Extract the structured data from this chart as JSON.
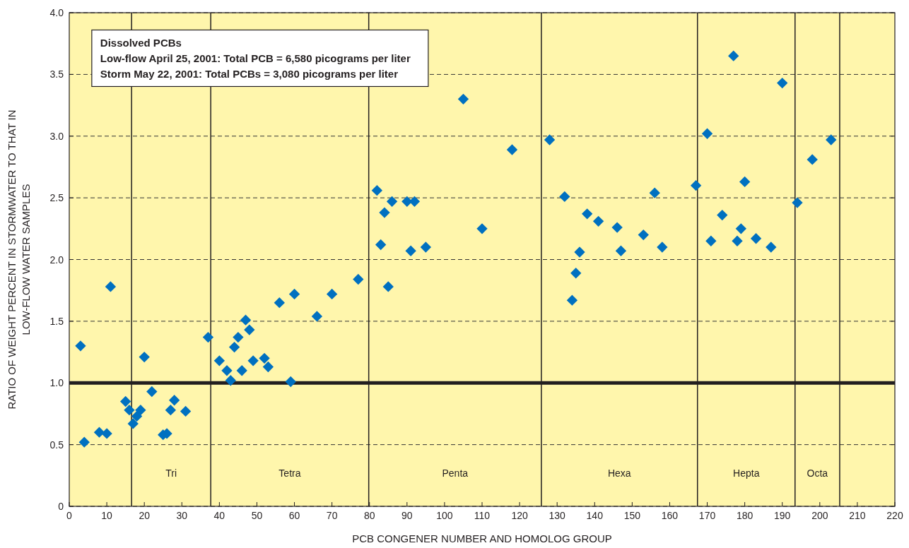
{
  "chart_data": {
    "type": "scatter",
    "xlabel": "PCB CONGENER NUMBER AND HOMOLOG GROUP",
    "ylabel": "RATIO OF WEIGHT PERCENT IN STORMWATER TO THAT IN LOW-FLOW WATER SAMPLES",
    "annotations": [
      "Dissolved PCBs",
      "Low-flow April 25, 2001: Total PCB = 6,580 picograms per liter",
      "Storm May 22, 2001: Total PCBs = 3,080 picograms per liter",
      "Tri",
      "Tetra",
      "Penta",
      "Hexa",
      "Hepta",
      "Octa"
    ],
    "x": [
      3,
      4,
      8,
      10,
      11,
      15,
      16,
      17,
      18,
      19,
      20,
      22,
      25,
      26,
      27,
      28,
      31,
      37,
      40,
      42,
      43,
      44,
      45,
      46,
      47,
      48,
      49,
      52,
      53,
      56,
      59,
      60,
      66,
      70,
      77,
      82,
      83,
      84,
      85,
      86,
      90,
      91,
      92,
      95,
      105,
      110,
      118,
      128,
      132,
      134,
      135,
      136,
      138,
      141,
      146,
      147,
      153,
      156,
      158,
      167,
      170,
      171,
      174,
      177,
      178,
      179,
      180,
      183,
      187,
      190,
      194,
      198,
      203
    ],
    "series": [
      {
        "color": "#0070c0",
        "values": [
          1.3,
          0.52,
          0.6,
          0.59,
          1.78,
          0.85,
          0.78,
          0.67,
          0.73,
          0.78,
          1.21,
          0.93,
          0.58,
          0.59,
          0.78,
          0.86,
          0.77,
          1.37,
          1.18,
          1.1,
          1.02,
          1.29,
          1.37,
          1.1,
          1.51,
          1.43,
          1.18,
          1.2,
          1.13,
          1.65,
          1.01,
          1.72,
          1.54,
          1.72,
          1.84,
          2.56,
          2.12,
          2.38,
          1.78,
          2.47,
          2.47,
          2.07,
          2.47,
          2.1,
          3.3,
          2.25,
          2.89,
          2.97,
          2.51,
          1.67,
          1.89,
          2.06,
          2.37,
          2.31,
          2.26,
          2.07,
          2.2,
          2.54,
          2.1,
          2.6,
          3.02,
          2.15,
          2.36,
          3.65,
          2.15,
          2.25,
          2.63,
          2.17,
          2.1,
          3.43,
          2.46,
          2.81,
          2.97
        ]
      }
    ],
    "marker": "diamond",
    "grid": "y",
    "xlim": [
      0,
      220
    ],
    "xticks": [
      0,
      10,
      20,
      30,
      40,
      50,
      60,
      70,
      80,
      90,
      100,
      110,
      120,
      130,
      140,
      150,
      160,
      170,
      180,
      190,
      200,
      210,
      220
    ],
    "ylim": [
      0,
      4
    ],
    "yticks": [
      0,
      0.5,
      {
        "value": 1,
        "label": "1.0"
      },
      1.5,
      {
        "value": 2,
        "label": "2.0"
      },
      2.5,
      {
        "value": 3,
        "label": "3.0"
      },
      3.5,
      {
        "value": 4,
        "label": "4.0"
      }
    ],
    "ref_lines": [
      {
        "axis": "y",
        "value": 1,
        "color": "#231f20"
      },
      {
        "axis": "x",
        "value": 16.6,
        "color": "#231f20"
      },
      {
        "axis": "x",
        "value": 37.7,
        "color": "#231f20"
      },
      {
        "axis": "x",
        "value": 79.8,
        "color": "#231f20"
      },
      {
        "axis": "x",
        "value": 125.8,
        "color": "#231f20"
      },
      {
        "axis": "x",
        "value": 167.4,
        "color": "#231f20"
      },
      {
        "axis": "x",
        "value": 193.4,
        "color": "#231f20"
      },
      {
        "axis": "x",
        "value": 205.3,
        "color": "#231f20"
      }
    ]
  }
}
